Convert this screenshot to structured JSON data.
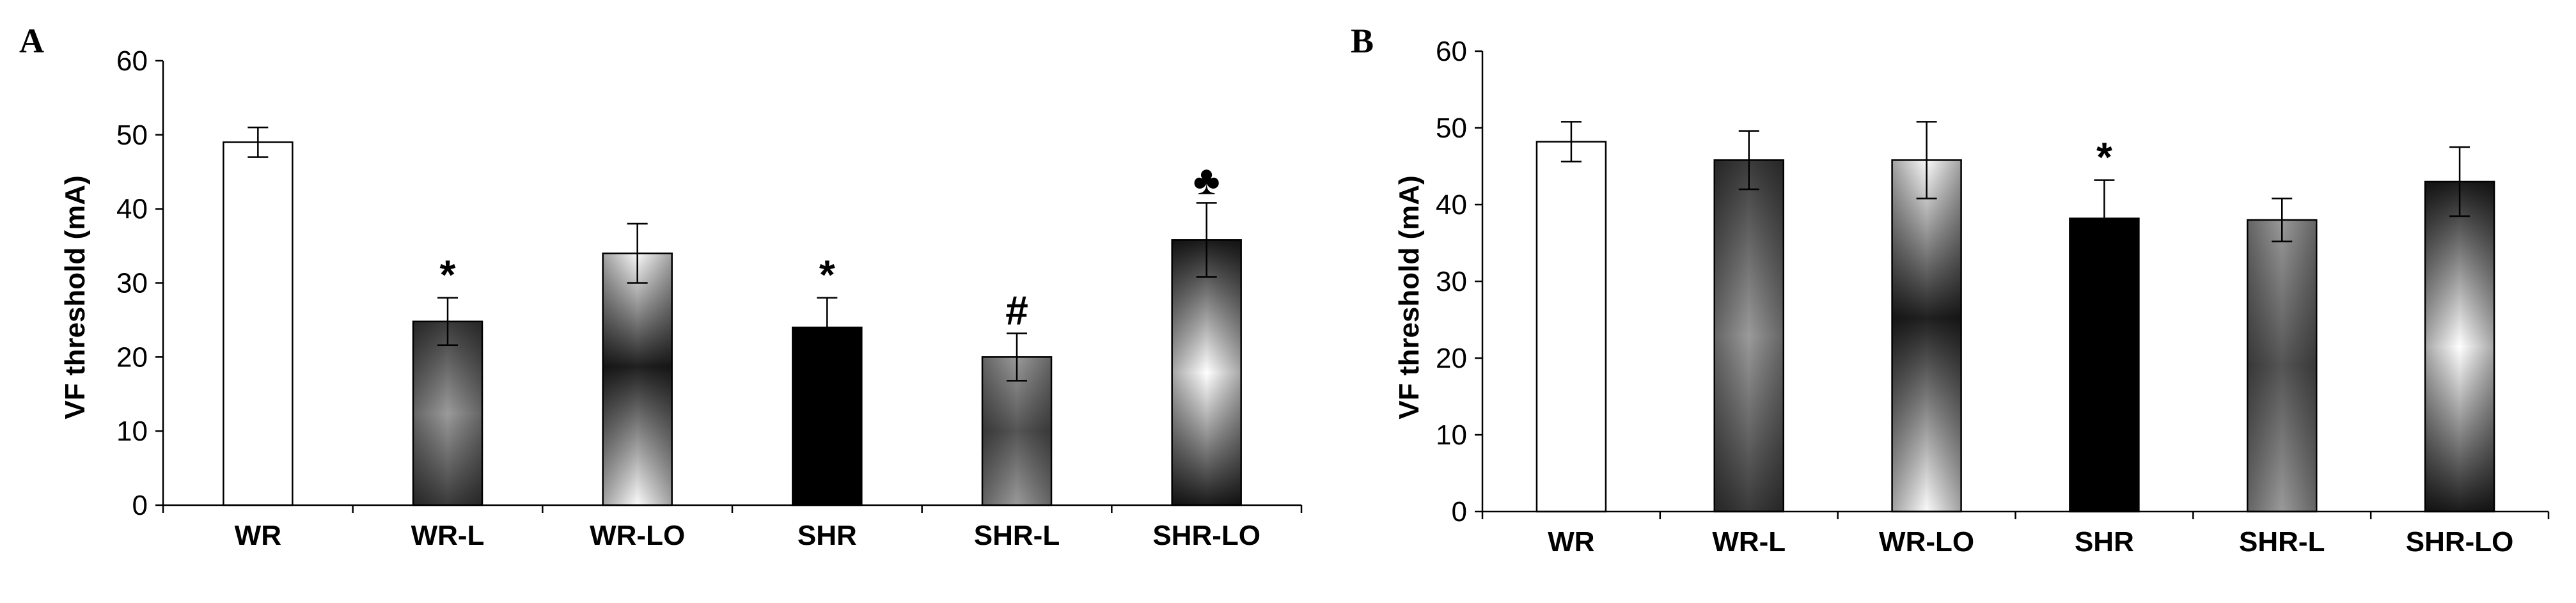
{
  "chart_data": [
    {
      "panel": "A",
      "type": "bar",
      "ylabel": "VF threshold (mA)",
      "xlabel": "",
      "ylim": [
        0,
        60
      ],
      "yticks": [
        0,
        10,
        20,
        30,
        40,
        50,
        60
      ],
      "categories": [
        "WR",
        "WR-L",
        "WR-LO",
        "SHR",
        "SHR-L",
        "SHR-LO"
      ],
      "values": [
        49,
        24.8,
        34,
        24,
        20,
        35.8
      ],
      "errors": [
        2,
        3.2,
        4,
        4,
        3.2,
        5
      ],
      "fills": [
        "white",
        "dark-gradient",
        "light-gradient",
        "black",
        "gray-gradient",
        "light-core-gradient"
      ],
      "annotations": [
        "",
        "*",
        "",
        "*",
        "#",
        "♣"
      ],
      "grid": false
    },
    {
      "panel": "B",
      "type": "bar",
      "ylabel": "VF threshold (mA)",
      "xlabel": "",
      "ylim": [
        0,
        60
      ],
      "yticks": [
        0,
        10,
        20,
        30,
        40,
        50,
        60
      ],
      "categories": [
        "WR",
        "WR-L",
        "WR-LO",
        "SHR",
        "SHR-L",
        "SHR-LO"
      ],
      "values": [
        48.2,
        45.8,
        45.8,
        38.2,
        38,
        43
      ],
      "errors": [
        2.6,
        3.8,
        5,
        5,
        2.8,
        4.5
      ],
      "fills": [
        "white",
        "dark-gradient",
        "light-gradient",
        "black",
        "gray-gradient",
        "light-core-gradient"
      ],
      "annotations": [
        "",
        "",
        "",
        "*",
        "",
        ""
      ],
      "grid": false
    }
  ]
}
